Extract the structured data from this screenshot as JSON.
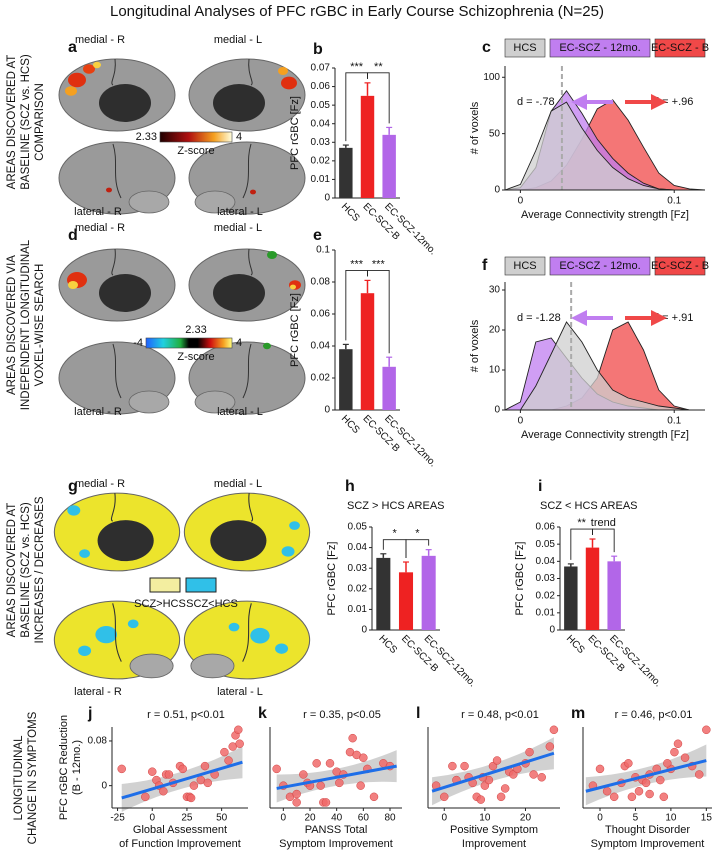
{
  "figure": {
    "title": "Longitudinal Analyses of PFC rGBC in Early Course Schizophrenia (N=25)",
    "row_labels": [
      [
        "AREAS DISCOVERED AT",
        "BASELINE (SCZ vs. HCS)",
        "COMPARISON"
      ],
      [
        "AREAS DISCOVERED VIA",
        "INDEPENDENT LONGITUDINAL",
        "VOXEL-WISE SEARCH"
      ],
      [
        "AREAS DISCOVERED AT",
        "BASELINE (SCZ vs. HCS)",
        "INCREASES / DECREASES"
      ],
      [
        "LONGITUDINAL",
        "CHANGE IN SYMPTOMS"
      ]
    ],
    "brains": [
      {
        "letter": "a",
        "labels": [
          "medial - R",
          "medial - L",
          "lateral - R",
          "lateral - L"
        ],
        "colorbar": [
          "2.33",
          "4"
        ],
        "colorbar_title": "Z-score"
      },
      {
        "letter": "d",
        "labels": [
          "medial - R",
          "medial - L",
          "lateral - R",
          "lateral - L"
        ],
        "colorbar": [
          "-4",
          "2.33",
          "4"
        ],
        "colorbar_title": "Z-score"
      },
      {
        "letter": "g",
        "labels": [
          "medial - R",
          "medial - L",
          "lateral - R",
          "lateral - L"
        ],
        "legend": [
          "SCZ>HCS",
          "SCZ<HCS"
        ]
      }
    ]
  },
  "chart_data": [
    {
      "type": "bar",
      "letter": "b",
      "ylabel": "PFC rGBC [Fz]",
      "categories": [
        "HCS",
        "EC-SCZ-B",
        "EC-SCZ-12mo."
      ],
      "colors": [
        "#333333",
        "#ee2222",
        "#b266e8"
      ],
      "values": [
        0.027,
        0.055,
        0.034
      ],
      "errors": [
        0.0015,
        0.007,
        0.004
      ],
      "ylim": [
        0,
        0.07
      ],
      "yticks": [
        0,
        0.01,
        0.02,
        0.03,
        0.04,
        0.05,
        0.06,
        0.07
      ],
      "significance": [
        "***",
        "**"
      ]
    },
    {
      "type": "area",
      "letter": "c",
      "xlabel": "Average Connectivity strength [Fz]",
      "ylabel": "# of voxels",
      "x": [
        -0.01,
        0,
        0.01,
        0.02,
        0.03,
        0.04,
        0.05,
        0.06,
        0.07,
        0.08,
        0.09,
        0.1,
        0.11,
        0.12
      ],
      "series": [
        {
          "name": "HCS",
          "color": "#cfcfcf",
          "values": [
            0,
            5,
            35,
            70,
            78,
            55,
            35,
            20,
            10,
            4,
            1,
            0,
            0,
            0
          ]
        },
        {
          "name": "EC-SCZ - 12mo.",
          "color": "#c07ef0",
          "values": [
            0,
            2,
            20,
            70,
            88,
            68,
            45,
            28,
            15,
            6,
            1,
            0,
            0,
            0
          ]
        },
        {
          "name": "EC-SCZ - B",
          "color": "#f04848",
          "values": [
            0,
            0,
            2,
            8,
            22,
            45,
            72,
            80,
            62,
            38,
            15,
            4,
            1,
            0
          ]
        }
      ],
      "xlim": [
        -0.01,
        0.12
      ],
      "ylim": [
        0,
        110
      ],
      "xticks": [
        0,
        0.1
      ],
      "yticks": [
        0,
        50,
        100
      ],
      "reference_x": 0.027,
      "annotations": [
        "d = -.78",
        "d = +.96"
      ]
    },
    {
      "type": "bar",
      "letter": "e",
      "ylabel": "PFC rGBC [Fz]",
      "categories": [
        "HCS",
        "EC-SCZ-B",
        "EC-SCZ-12mo."
      ],
      "colors": [
        "#333333",
        "#ee2222",
        "#b266e8"
      ],
      "values": [
        0.038,
        0.073,
        0.027
      ],
      "errors": [
        0.003,
        0.008,
        0.006
      ],
      "ylim": [
        0,
        0.1
      ],
      "yticks": [
        0,
        0.02,
        0.04,
        0.06,
        0.08,
        0.1
      ],
      "significance": [
        "***",
        "***"
      ]
    },
    {
      "type": "area",
      "letter": "f",
      "xlabel": "Average Connectivity strength [Fz]",
      "ylabel": "# of voxels",
      "x": [
        -0.01,
        0,
        0.01,
        0.02,
        0.03,
        0.04,
        0.05,
        0.06,
        0.07,
        0.08,
        0.09,
        0.1,
        0.11,
        0.12
      ],
      "series": [
        {
          "name": "HCS",
          "color": "#cfcfcf",
          "values": [
            0,
            0,
            6,
            14,
            22,
            17,
            10,
            5,
            3,
            2,
            1,
            0.5,
            0,
            0
          ]
        },
        {
          "name": "EC-SCZ - 12mo.",
          "color": "#c07ef0",
          "values": [
            0,
            2,
            17,
            18,
            13,
            8,
            4,
            2,
            1,
            0.5,
            0,
            0,
            0,
            0
          ]
        },
        {
          "name": "EC-SCZ - B",
          "color": "#f04848",
          "values": [
            0,
            0,
            0,
            0,
            1,
            3,
            8,
            20,
            22,
            15,
            5,
            1,
            0,
            0
          ]
        }
      ],
      "xlim": [
        -0.01,
        0.12
      ],
      "ylim": [
        0,
        32
      ],
      "xticks": [
        0,
        0.1
      ],
      "yticks": [
        0,
        10,
        20,
        30
      ],
      "reference_x": 0.033,
      "annotations": [
        "d = -1.28",
        "d = +.91"
      ]
    },
    {
      "type": "bar",
      "letter": "h",
      "title": "SCZ > HCS AREAS",
      "ylabel": "PFC rGBC [Fz]",
      "categories": [
        "HCS",
        "EC-SCZ-B",
        "EC-SCZ-12mo."
      ],
      "colors": [
        "#333333",
        "#ee2222",
        "#b266e8"
      ],
      "values": [
        0.035,
        0.028,
        0.036
      ],
      "errors": [
        0.002,
        0.005,
        0.003
      ],
      "ylim": [
        0,
        0.05
      ],
      "yticks": [
        0,
        0.01,
        0.02,
        0.03,
        0.04,
        0.05
      ],
      "significance": [
        "*",
        "*"
      ]
    },
    {
      "type": "bar",
      "letter": "i",
      "title": "SCZ < HCS AREAS",
      "ylabel": "PFC rGBC [Fz]",
      "categories": [
        "HCS",
        "EC-SCZ-B",
        "EC-SCZ-12mo."
      ],
      "colors": [
        "#333333",
        "#ee2222",
        "#b266e8"
      ],
      "values": [
        0.037,
        0.048,
        0.04
      ],
      "errors": [
        0.0015,
        0.005,
        0.003
      ],
      "ylim": [
        0,
        0.06
      ],
      "yticks": [
        0,
        0.01,
        0.02,
        0.03,
        0.04,
        0.05,
        0.06
      ],
      "significance": [
        "**",
        "trend"
      ]
    },
    {
      "type": "scatter",
      "letter": "j",
      "annotation": "r = 0.51, p<0.01",
      "ylabel": [
        "PFC rGBC Reduction",
        "(B - 12mo.)"
      ],
      "xlabel": [
        "Global Assessment",
        "of Function Improvement"
      ],
      "color": "#f06a6a",
      "fit_color": "#1e6ee8",
      "x": [
        -22,
        -5,
        0,
        3,
        5,
        8,
        10,
        15,
        20,
        22,
        25,
        27,
        30,
        35,
        38,
        45,
        52,
        55,
        58,
        60,
        62,
        63,
        28,
        40,
        12
      ],
      "y": [
        0.03,
        -0.02,
        0.025,
        0.01,
        0,
        -0.01,
        0.02,
        0.005,
        0.035,
        0.03,
        -0.02,
        -0.02,
        0,
        0.01,
        0.035,
        0.02,
        0.06,
        0.045,
        0.07,
        0.09,
        0.1,
        0.075,
        -0.022,
        0.005,
        0.02
      ],
      "fit_x": [
        -22,
        65
      ],
      "fit_y": [
        -0.022,
        0.042
      ],
      "xlim": [
        -29,
        69
      ],
      "ylim": [
        -0.04,
        0.105
      ],
      "xticks": [
        -25,
        0,
        25,
        50
      ],
      "yticks": [
        0,
        0.08
      ]
    },
    {
      "type": "scatter",
      "letter": "k",
      "annotation": "r = 0.35, p<0.05",
      "xlabel": [
        "PANSS Total",
        "Symptom Improvement"
      ],
      "color": "#f06a6a",
      "fit_color": "#1e6ee8",
      "x": [
        -5,
        0,
        5,
        10,
        15,
        18,
        20,
        25,
        28,
        30,
        32,
        35,
        40,
        42,
        45,
        50,
        52,
        55,
        58,
        60,
        63,
        68,
        75,
        80,
        10
      ],
      "y": [
        0.03,
        0,
        -0.02,
        -0.03,
        0.02,
        0.005,
        0,
        0.04,
        0,
        -0.03,
        -0.03,
        0.04,
        0.025,
        0.005,
        0.02,
        0.06,
        0.085,
        0.055,
        0,
        0.05,
        0.03,
        -0.02,
        0.04,
        0.035,
        -0.015
      ],
      "fit_x": [
        -5,
        85
      ],
      "fit_y": [
        -0.005,
        0.035
      ],
      "xlim": [
        -10,
        89
      ],
      "ylim": [
        -0.04,
        0.105
      ],
      "xticks": [
        0,
        20,
        40,
        60,
        80
      ]
    },
    {
      "type": "scatter",
      "letter": "l",
      "annotation": "r = 0.48, p<0.01",
      "xlabel": [
        "Positive Symptom",
        "Improvement"
      ],
      "color": "#f06a6a",
      "fit_color": "#1e6ee8",
      "x": [
        -2,
        0,
        2,
        3,
        5,
        6,
        8,
        9,
        10,
        11,
        12,
        13,
        14,
        15,
        16,
        17,
        18,
        20,
        21,
        22,
        24,
        26,
        27,
        9.5,
        7
      ],
      "y": [
        0,
        -0.02,
        0.035,
        0.01,
        0.035,
        0.015,
        -0.02,
        -0.025,
        0,
        0.01,
        0.035,
        0.045,
        -0.02,
        -0.005,
        0.025,
        0.02,
        0.03,
        0.04,
        0.06,
        0.02,
        0.015,
        0.07,
        0.1,
        0.015,
        0.005
      ],
      "fit_x": [
        -3,
        27
      ],
      "fit_y": [
        -0.01,
        0.058
      ],
      "xlim": [
        -4,
        28.5
      ],
      "ylim": [
        -0.04,
        0.105
      ],
      "xticks": [
        0,
        10,
        20
      ]
    },
    {
      "type": "scatter",
      "letter": "m",
      "annotation": "r = 0.46, p<0.01",
      "xlabel": [
        "Thought Disorder",
        "Symptom Improvement"
      ],
      "color": "#f06a6a",
      "fit_color": "#1e6ee8",
      "x": [
        -1,
        0,
        1,
        2,
        3,
        3.5,
        4,
        5,
        5.5,
        6,
        6.5,
        7,
        7,
        8,
        8.5,
        9,
        10,
        10.5,
        11,
        12,
        13,
        14,
        15,
        4.5,
        9.5
      ],
      "y": [
        0,
        0.03,
        -0.01,
        -0.02,
        0.005,
        0.035,
        0.04,
        0.015,
        -0.01,
        0.01,
        0.005,
        -0.015,
        0.02,
        0.03,
        0.01,
        -0.02,
        0.03,
        0.06,
        0.075,
        0.05,
        0.035,
        0.02,
        0.1,
        -0.02,
        0.04
      ],
      "fit_x": [
        -2,
        15
      ],
      "fit_y": [
        -0.01,
        0.045
      ],
      "xlim": [
        -2.4,
        15.8
      ],
      "ylim": [
        -0.04,
        0.105
      ],
      "xticks": [
        0,
        5,
        10,
        15
      ]
    }
  ]
}
